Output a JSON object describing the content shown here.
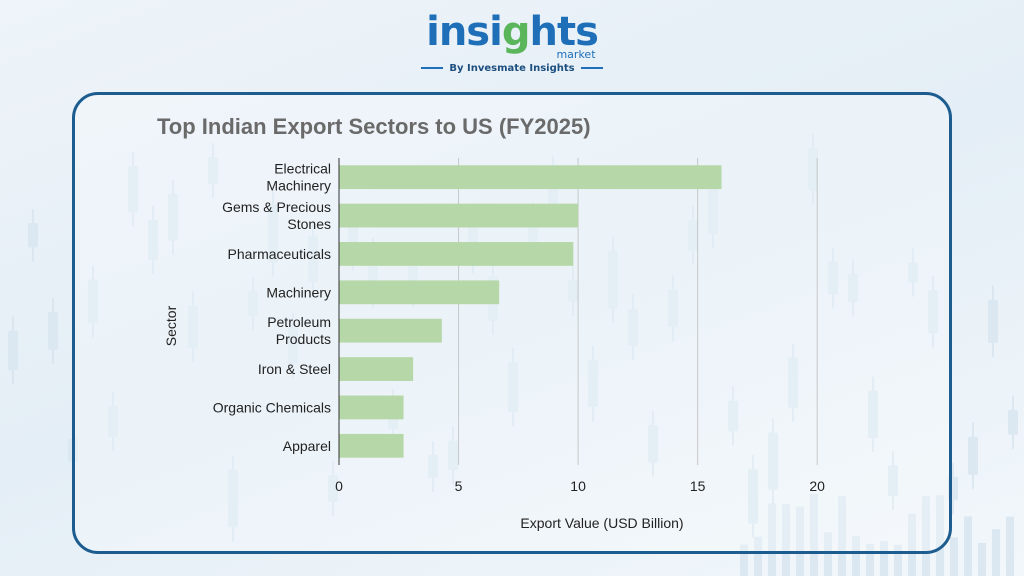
{
  "logo": {
    "word_main": "insi",
    "word_accent": "g",
    "word_end": "hts",
    "sub": "market",
    "by": "By Invesmate Insights"
  },
  "colors": {
    "bar": "#b6d7a8",
    "frame": "#1c5c8f",
    "grid": "#c8c8c8",
    "title": "#6a6a6a"
  },
  "chart_data": {
    "type": "bar",
    "orientation": "horizontal",
    "title": "Top Indian Export Sectors to US (FY2025)",
    "xlabel": "Export Value (USD Billion)",
    "ylabel": "Sector",
    "categories": [
      "Electrical Machinery",
      "Gems & Precious Stones",
      "Pharmaceuticals",
      "Machinery",
      "Petroleum Products",
      "Iron & Steel",
      "Organic Chemicals",
      "Apparel"
    ],
    "category_lines": [
      [
        "Electrical",
        "Machinery"
      ],
      [
        "Gems & Precious",
        "Stones"
      ],
      [
        "Pharmaceuticals"
      ],
      [
        "Machinery"
      ],
      [
        "Petroleum",
        "Products"
      ],
      [
        "Iron & Steel"
      ],
      [
        "Organic Chemicals"
      ],
      [
        "Apparel"
      ]
    ],
    "values": [
      16.0,
      10.0,
      9.8,
      6.7,
      4.3,
      3.1,
      2.7,
      2.7
    ],
    "xlim": [
      0,
      22
    ],
    "xticks": [
      0,
      5,
      10,
      15,
      20
    ],
    "grid": "vertical"
  }
}
